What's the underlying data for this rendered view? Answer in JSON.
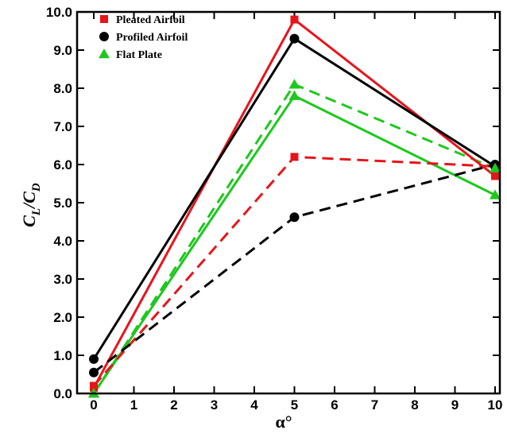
{
  "chart_data": {
    "type": "line",
    "xlabel": "α°",
    "ylabel": {
      "main": "C",
      "sub1": "L",
      "slash": "/C",
      "sub2": "D"
    },
    "xlim": [
      -1,
      10
    ],
    "ylim": [
      0,
      10
    ],
    "xticks": [
      0,
      1,
      2,
      3,
      4,
      5,
      6,
      7,
      8,
      9,
      10
    ],
    "yticks": [
      0,
      1,
      2,
      3,
      4,
      5,
      6,
      7,
      8,
      9,
      10
    ],
    "ytick_labels": [
      "0.0",
      "1.0",
      "2.0",
      "3.0",
      "4.0",
      "5.0",
      "6.0",
      "7.0",
      "8.0",
      "9.0",
      "10.0"
    ],
    "legend": [
      {
        "label": "Pleated Airfoil",
        "color": "#e8141b",
        "marker": "square"
      },
      {
        "label": "Profiled Airfoil",
        "color": "#000000",
        "marker": "circle"
      },
      {
        "label": "Flat Plate",
        "color": "#1ec81e",
        "marker": "triangle"
      }
    ],
    "legend_position": "top-left",
    "series": [
      {
        "name": "Pleated Airfoil",
        "style": "solid",
        "color": "#e8141b",
        "marker": "square",
        "x": [
          0,
          5,
          10
        ],
        "y": [
          0.15,
          9.8,
          5.7
        ]
      },
      {
        "style": "dashed",
        "color": "#e8141b",
        "marker": "square",
        "x": [
          0,
          5,
          10
        ],
        "y": [
          0.2,
          6.2,
          5.95
        ]
      },
      {
        "name": "Profiled Airfoil",
        "style": "solid",
        "color": "#000000",
        "marker": "circle",
        "x": [
          0,
          5,
          10
        ],
        "y": [
          0.9,
          9.3,
          5.95
        ]
      },
      {
        "style": "dashed",
        "color": "#000000",
        "marker": "circle",
        "x": [
          0,
          5,
          10
        ],
        "y": [
          0.55,
          4.62,
          6.0
        ]
      },
      {
        "name": "Flat Plate",
        "style": "solid",
        "color": "#1ec81e",
        "marker": "triangle",
        "x": [
          0,
          5,
          10
        ],
        "y": [
          0.0,
          7.8,
          5.2
        ]
      },
      {
        "style": "dashed",
        "color": "#1ec81e",
        "marker": "triangle",
        "x": [
          0,
          5,
          10
        ],
        "y": [
          0.0,
          8.1,
          5.9
        ]
      }
    ]
  }
}
